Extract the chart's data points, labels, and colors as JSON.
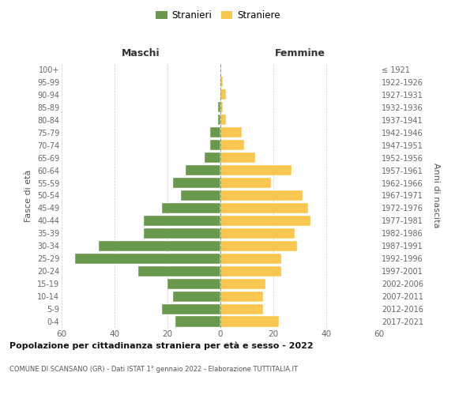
{
  "age_groups": [
    "0-4",
    "5-9",
    "10-14",
    "15-19",
    "20-24",
    "25-29",
    "30-34",
    "35-39",
    "40-44",
    "45-49",
    "50-54",
    "55-59",
    "60-64",
    "65-69",
    "70-74",
    "75-79",
    "80-84",
    "85-89",
    "90-94",
    "95-99",
    "100+"
  ],
  "birth_years": [
    "2017-2021",
    "2012-2016",
    "2007-2011",
    "2002-2006",
    "1997-2001",
    "1992-1996",
    "1987-1991",
    "1982-1986",
    "1977-1981",
    "1972-1976",
    "1967-1971",
    "1962-1966",
    "1957-1961",
    "1952-1956",
    "1947-1951",
    "1942-1946",
    "1937-1941",
    "1932-1936",
    "1927-1931",
    "1922-1926",
    "≤ 1921"
  ],
  "maschi": [
    17,
    22,
    18,
    20,
    31,
    55,
    46,
    29,
    29,
    22,
    15,
    18,
    13,
    6,
    4,
    4,
    1,
    1,
    0,
    0,
    0
  ],
  "femmine": [
    22,
    16,
    16,
    17,
    23,
    23,
    29,
    28,
    34,
    33,
    31,
    19,
    27,
    13,
    9,
    8,
    2,
    1,
    2,
    1,
    0
  ],
  "male_color": "#6a994e",
  "female_color": "#f9c74f",
  "background_color": "#ffffff",
  "grid_color": "#cccccc",
  "title": "Popolazione per cittadinanza straniera per età e sesso - 2022",
  "subtitle": "COMUNE DI SCANSANO (GR) - Dati ISTAT 1° gennaio 2022 - Elaborazione TUTTITALIA.IT",
  "header_left": "Maschi",
  "header_right": "Femmine",
  "ylabel_left": "Fasce di età",
  "ylabel_right": "Anni di nascita",
  "legend_male": "Stranieri",
  "legend_female": "Straniere",
  "xlim": 60
}
